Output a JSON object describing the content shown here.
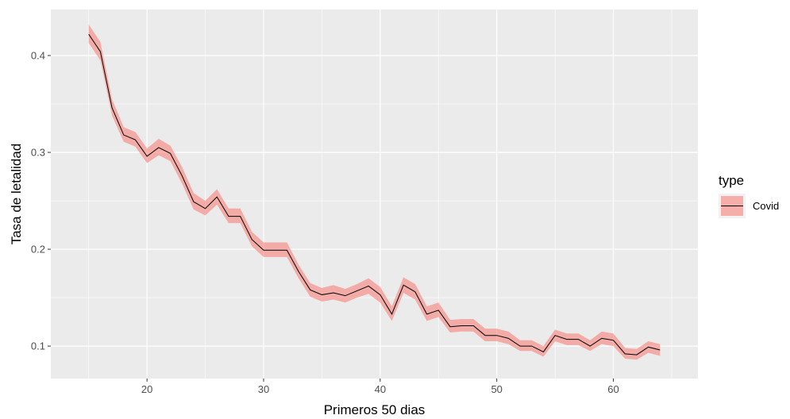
{
  "chart_data": {
    "type": "line",
    "xlabel": "Primeros 50 dias",
    "ylabel": "Tasa de letalidad",
    "xlim": [
      11.75,
      67.25
    ],
    "ylim": [
      0.0665,
      0.4475
    ],
    "x_ticks": [
      20,
      30,
      40,
      50,
      60
    ],
    "y_ticks": [
      0.1,
      0.2,
      0.3,
      0.4
    ],
    "x_tick_labels": [
      "20",
      "30",
      "40",
      "50",
      "60"
    ],
    "y_tick_labels": [
      "0.1",
      "0.2",
      "0.3",
      "0.4"
    ],
    "grid": true,
    "legend": {
      "title": "type",
      "position": "right",
      "entries": [
        "Covid"
      ]
    },
    "colors": {
      "panel_background": "#ebebeb",
      "grid_major": "#ffffff",
      "ribbon_fill": "#f8766d",
      "ribbon_opacity": 0.55,
      "line": "#000000"
    },
    "series": [
      {
        "name": "Covid",
        "x": [
          15,
          16,
          17,
          18,
          19,
          20,
          21,
          22,
          23,
          24,
          25,
          26,
          27,
          28,
          29,
          30,
          31,
          32,
          33,
          34,
          35,
          36,
          37,
          38,
          39,
          40,
          41,
          42,
          43,
          44,
          45,
          46,
          47,
          48,
          49,
          50,
          51,
          52,
          53,
          54,
          55,
          56,
          57,
          58,
          59,
          60,
          61,
          62,
          63,
          64
        ],
        "y": [
          0.422,
          0.404,
          0.346,
          0.318,
          0.313,
          0.296,
          0.305,
          0.299,
          0.276,
          0.249,
          0.242,
          0.254,
          0.234,
          0.234,
          0.21,
          0.199,
          0.199,
          0.199,
          0.177,
          0.158,
          0.153,
          0.155,
          0.152,
          0.157,
          0.162,
          0.153,
          0.133,
          0.163,
          0.156,
          0.133,
          0.137,
          0.12,
          0.121,
          0.121,
          0.111,
          0.111,
          0.108,
          0.1,
          0.1,
          0.094,
          0.111,
          0.107,
          0.107,
          0.1,
          0.108,
          0.106,
          0.092,
          0.091,
          0.099,
          0.096
        ],
        "lower": [
          0.413,
          0.395,
          0.338,
          0.311,
          0.306,
          0.289,
          0.297,
          0.291,
          0.268,
          0.241,
          0.235,
          0.246,
          0.227,
          0.227,
          0.203,
          0.192,
          0.192,
          0.192,
          0.17,
          0.151,
          0.146,
          0.148,
          0.145,
          0.15,
          0.154,
          0.145,
          0.126,
          0.155,
          0.148,
          0.126,
          0.13,
          0.114,
          0.115,
          0.115,
          0.105,
          0.105,
          0.102,
          0.095,
          0.095,
          0.089,
          0.105,
          0.101,
          0.101,
          0.095,
          0.102,
          0.1,
          0.087,
          0.086,
          0.093,
          0.09
        ],
        "upper": [
          0.432,
          0.414,
          0.355,
          0.326,
          0.321,
          0.304,
          0.314,
          0.307,
          0.285,
          0.258,
          0.25,
          0.262,
          0.242,
          0.242,
          0.218,
          0.207,
          0.207,
          0.207,
          0.184,
          0.165,
          0.16,
          0.163,
          0.159,
          0.164,
          0.17,
          0.161,
          0.141,
          0.171,
          0.164,
          0.141,
          0.145,
          0.127,
          0.128,
          0.128,
          0.118,
          0.118,
          0.115,
          0.106,
          0.106,
          0.1,
          0.117,
          0.113,
          0.113,
          0.106,
          0.115,
          0.113,
          0.098,
          0.097,
          0.105,
          0.102
        ]
      }
    ]
  }
}
